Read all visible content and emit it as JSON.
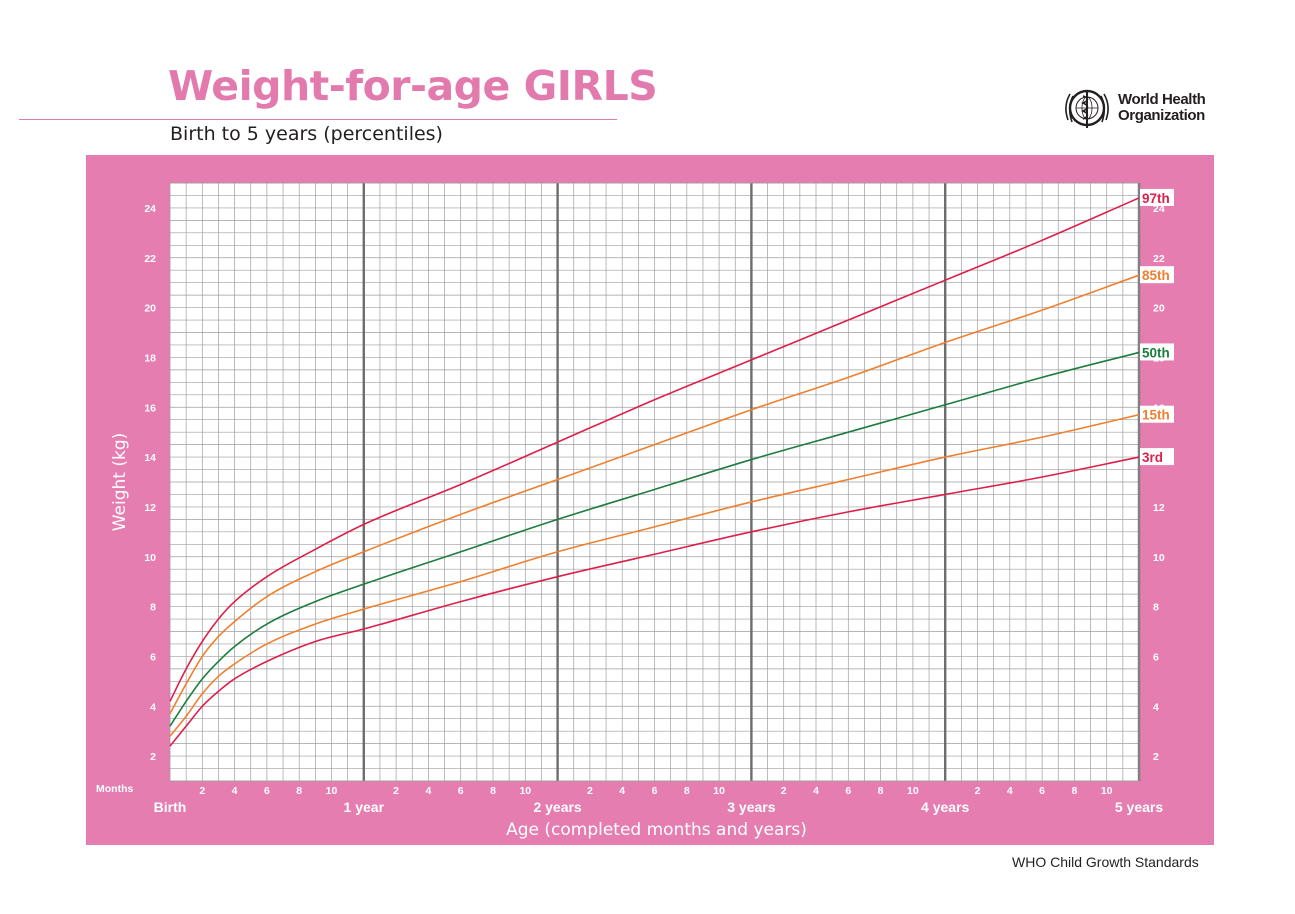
{
  "header": {
    "title": "Weight-for-age GIRLS",
    "subtitle": "Birth to 5 years (percentiles)"
  },
  "organization": {
    "name_line1": "World Health",
    "name_line2": "Organization",
    "logo_icon": "who-emblem-icon"
  },
  "footer": {
    "text": "WHO Child Growth Standards"
  },
  "colors": {
    "panel": "#e57db1",
    "title": "#e27aae",
    "plot_bg": "#ffffff",
    "grid_minor": "#9e9e9e",
    "grid_major": "#6d6d6d",
    "p97": "#dd1f4c",
    "p85": "#f07f2e",
    "p50": "#1c7d3d",
    "p15": "#f07f2e",
    "p3": "#dd1f4c"
  },
  "chart_data": {
    "type": "line",
    "title": "Weight-for-age GIRLS",
    "subtitle": "Birth to 5 years (percentiles)",
    "xlabel": "Age (completed months and years)",
    "ylabel": "Weight (kg)",
    "x_unit_label": "Months",
    "xlim": [
      0,
      60
    ],
    "ylim": [
      1,
      25
    ],
    "x_minor_step_months": 1,
    "y_minor_step": 0.5,
    "y_ticks": [
      2,
      4,
      6,
      8,
      10,
      12,
      14,
      16,
      18,
      20,
      22,
      24
    ],
    "month_tick_labels": [
      "2",
      "4",
      "6",
      "8",
      "10"
    ],
    "year_labels": [
      {
        "label": "Birth",
        "month": 0
      },
      {
        "label": "1 year",
        "month": 12
      },
      {
        "label": "2 years",
        "month": 24
      },
      {
        "label": "3 years",
        "month": 36
      },
      {
        "label": "4 years",
        "month": 48
      },
      {
        "label": "5 years",
        "month": 60
      }
    ],
    "grid": true,
    "legend": "end-of-line labels at right",
    "x": [
      0,
      1,
      2,
      3,
      4,
      6,
      9,
      12,
      18,
      24,
      30,
      36,
      42,
      48,
      54,
      60
    ],
    "series": [
      {
        "name": "97th",
        "color_key": "p97",
        "values": [
          4.2,
          5.5,
          6.6,
          7.5,
          8.2,
          9.2,
          10.3,
          11.3,
          12.9,
          14.6,
          16.3,
          17.9,
          19.5,
          21.1,
          22.7,
          24.4
        ]
      },
      {
        "name": "85th",
        "color_key": "p85",
        "values": [
          3.7,
          4.9,
          6.0,
          6.8,
          7.4,
          8.4,
          9.4,
          10.2,
          11.7,
          13.1,
          14.5,
          15.9,
          17.2,
          18.6,
          19.9,
          21.3
        ]
      },
      {
        "name": "50th",
        "color_key": "p50",
        "values": [
          3.2,
          4.2,
          5.1,
          5.8,
          6.4,
          7.3,
          8.2,
          8.9,
          10.2,
          11.5,
          12.7,
          13.9,
          15.0,
          16.1,
          17.2,
          18.2
        ]
      },
      {
        "name": "15th",
        "color_key": "p15",
        "values": [
          2.8,
          3.6,
          4.5,
          5.2,
          5.7,
          6.5,
          7.3,
          7.9,
          9.0,
          10.2,
          11.2,
          12.2,
          13.1,
          14.0,
          14.8,
          15.7
        ]
      },
      {
        "name": "3rd",
        "color_key": "p3",
        "values": [
          2.4,
          3.2,
          4.0,
          4.6,
          5.1,
          5.8,
          6.6,
          7.1,
          8.2,
          9.2,
          10.1,
          11.0,
          11.8,
          12.5,
          13.2,
          14.0
        ]
      }
    ]
  }
}
